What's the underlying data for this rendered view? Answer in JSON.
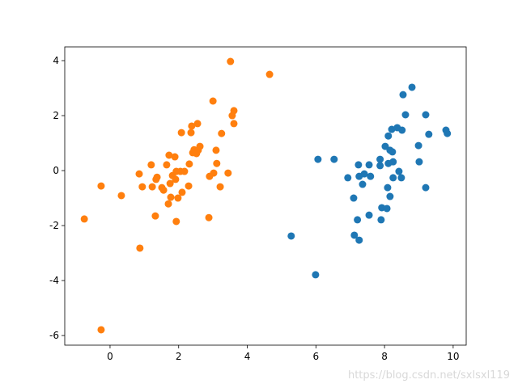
{
  "chart_data": {
    "type": "scatter",
    "xlim": [
      -1.32,
      10.38
    ],
    "ylim": [
      -6.35,
      4.5
    ],
    "xticks": [
      0,
      2,
      4,
      6,
      8,
      10
    ],
    "yticks": [
      -6,
      -4,
      -2,
      0,
      2,
      4
    ],
    "series": [
      {
        "color": "#1f77b4",
        "x": [
          5.28,
          5.99,
          6.06,
          6.53,
          6.93,
          7.1,
          7.12,
          7.24,
          7.26,
          7.21,
          7.26,
          7.36,
          7.41,
          7.55,
          7.55,
          7.59,
          7.87,
          7.87,
          7.92,
          7.9,
          8.02,
          8.07,
          8.09,
          8.11,
          8.11,
          8.16,
          8.16,
          8.21,
          8.23,
          8.25,
          8.25,
          8.37,
          8.42,
          8.49,
          8.51,
          8.54,
          8.61,
          8.8,
          8.99,
          9.01,
          9.2,
          9.2,
          9.29,
          9.79,
          9.83
        ],
        "values": [
          -2.38,
          -3.79,
          0.41,
          0.41,
          -0.26,
          -1.0,
          -2.35,
          0.21,
          -0.21,
          -1.79,
          -2.53,
          -0.5,
          -0.12,
          0.21,
          -1.62,
          -0.21,
          0.41,
          0.18,
          -1.35,
          -1.79,
          0.88,
          -1.38,
          -0.62,
          1.26,
          0.26,
          0.74,
          -0.94,
          1.5,
          0.68,
          0.32,
          -0.26,
          1.56,
          -0.03,
          -0.26,
          1.47,
          2.76,
          2.03,
          3.03,
          0.91,
          0.32,
          2.03,
          -0.62,
          1.32,
          1.47,
          1.35
        ]
      },
      {
        "color": "#ff7f0e",
        "x": [
          -0.75,
          -0.26,
          -0.26,
          0.33,
          0.85,
          0.87,
          0.94,
          1.2,
          1.23,
          1.32,
          1.34,
          1.37,
          1.51,
          1.56,
          1.65,
          1.7,
          1.72,
          1.75,
          1.77,
          1.82,
          1.89,
          1.91,
          1.93,
          1.93,
          1.98,
          2.05,
          2.08,
          2.1,
          2.17,
          2.29,
          2.31,
          2.36,
          2.38,
          2.41,
          2.45,
          2.52,
          2.55,
          2.57,
          2.62,
          2.88,
          2.9,
          3.0,
          3.02,
          3.09,
          3.11,
          3.21,
          3.25,
          3.44,
          3.51,
          3.56,
          3.61,
          3.61,
          4.65
        ],
        "values": [
          -1.76,
          -0.56,
          -5.79,
          -0.91,
          -0.12,
          -2.82,
          -0.59,
          0.21,
          -0.59,
          -1.65,
          -0.32,
          -0.24,
          -0.62,
          -0.71,
          0.21,
          -1.21,
          0.56,
          -0.47,
          -0.97,
          -0.18,
          0.5,
          -0.32,
          -0.03,
          -1.85,
          -1.0,
          -0.03,
          1.38,
          -0.79,
          -0.03,
          -0.56,
          0.24,
          1.38,
          1.62,
          0.65,
          0.76,
          0.62,
          1.71,
          0.74,
          0.88,
          -1.71,
          -0.21,
          2.53,
          -0.09,
          0.74,
          0.26,
          -0.59,
          1.35,
          -0.09,
          3.97,
          2.0,
          2.18,
          1.71,
          3.5
        ]
      }
    ],
    "watermark": "https://blog.csdn.net/sxlsxl119"
  }
}
